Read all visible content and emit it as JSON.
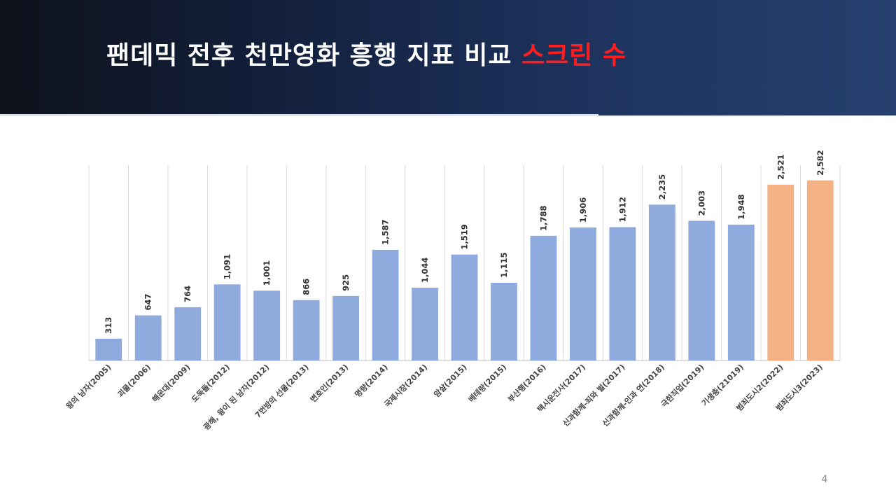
{
  "slide": {
    "title_main": "팬데믹 전후 천만영화 흥행 지표 비교 ",
    "title_highlight": "스크린 수",
    "page_number": "4"
  },
  "colors": {
    "title_highlight": "#ff1d1d",
    "bar_default": "#8faadc",
    "bar_highlight": "#f4b183"
  },
  "chart_data": {
    "type": "bar",
    "title": "",
    "xlabel": "",
    "ylabel": "",
    "ylim": [
      0,
      2800
    ],
    "grid": "vertical",
    "categories": [
      "왕의 남자(2005)",
      "괴물(2006)",
      "해운대(2009)",
      "도둑들(2012)",
      "광해, 왕이 된 남자(2012)",
      "7번방의 선물(2013)",
      "변호인(2013)",
      "명량(2014)",
      "국제시장(2014)",
      "암살(2015)",
      "베테랑(2015)",
      "부산행(2016)",
      "택시운전사(2017)",
      "신과함께-죄와 벌(2017)",
      "신과함께-인과 연(2018)",
      "극한직업(2019)",
      "기생충(21019)",
      "범죄도시2(2022)",
      "범죄도시3(2023)"
    ],
    "values": [
      313,
      647,
      764,
      1091,
      1001,
      866,
      925,
      1587,
      1044,
      1519,
      1115,
      1788,
      1906,
      1912,
      2235,
      2003,
      1948,
      2521,
      2582
    ],
    "value_labels": [
      "313",
      "647",
      "764",
      "1,091",
      "1,001",
      "866",
      "925",
      "1,587",
      "1,044",
      "1,519",
      "1,115",
      "1,788",
      "1,906",
      "1,912",
      "2,235",
      "2,003",
      "1,948",
      "2,521",
      "2,582"
    ],
    "highlighted": [
      false,
      false,
      false,
      false,
      false,
      false,
      false,
      false,
      false,
      false,
      false,
      false,
      false,
      false,
      false,
      false,
      false,
      true,
      true
    ]
  }
}
